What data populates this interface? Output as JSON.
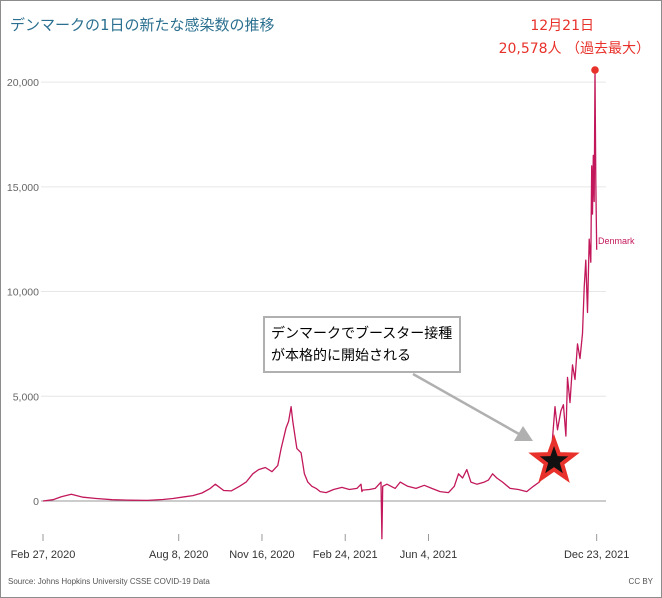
{
  "title": "デンマークの1日の新たな感染数の推移",
  "source": "Source: Johns Hopkins University CSSE COVID-19 Data",
  "license": "CC BY",
  "peak_annotation": {
    "date_label": "12月21日",
    "value_label": "20,578人 （過去最大）",
    "date": "2021-12-21",
    "value": 20578
  },
  "booster_annotation": {
    "line1": "デンマークでブースター接種",
    "line2": "が本格的に開始される",
    "marker": "star-icon"
  },
  "colors": {
    "series": "#c2185b",
    "peak": "#e8312a",
    "title": "#2a6f8f",
    "star_fill": "#111111",
    "star_stroke": "#e8312a",
    "arrow": "#b0b0b0"
  },
  "chart_data": {
    "type": "line",
    "title": "デンマークの1日の新たな感染数の推移",
    "xlabel": "",
    "ylabel": "",
    "x_range": [
      "2020-02-27",
      "2021-12-21"
    ],
    "ylim": [
      0,
      20578
    ],
    "yticks": [
      0,
      5000,
      10000,
      15000,
      20000
    ],
    "ytick_labels": [
      "0",
      "5,000",
      "10,000",
      "15,000",
      "20,000"
    ],
    "xtick_labels": [
      "Feb 27, 2020",
      "Aug 8, 2020",
      "Nov 16, 2020",
      "Feb 24, 2021",
      "Jun 4, 2021",
      "Dec 23, 2021"
    ],
    "xtick_dates": [
      "2020-02-27",
      "2020-08-08",
      "2020-11-16",
      "2021-02-24",
      "2021-06-04",
      "2021-12-23"
    ],
    "grid": "horizontal",
    "series": [
      {
        "name": "Denmark",
        "x": [
          "2020-02-27",
          "2020-03-10",
          "2020-03-20",
          "2020-04-01",
          "2020-04-15",
          "2020-05-01",
          "2020-05-20",
          "2020-06-10",
          "2020-07-01",
          "2020-07-20",
          "2020-08-01",
          "2020-08-15",
          "2020-08-25",
          "2020-09-05",
          "2020-09-15",
          "2020-09-21",
          "2020-10-01",
          "2020-10-10",
          "2020-10-20",
          "2020-10-28",
          "2020-11-05",
          "2020-11-12",
          "2020-11-20",
          "2020-11-28",
          "2020-12-05",
          "2020-12-09",
          "2020-12-12",
          "2020-12-15",
          "2020-12-18",
          "2020-12-21",
          "2020-12-23",
          "2020-12-26",
          "2020-12-28",
          "2021-01-02",
          "2021-01-06",
          "2021-01-10",
          "2021-01-15",
          "2021-01-20",
          "2021-01-25",
          "2021-02-01",
          "2021-02-10",
          "2021-02-20",
          "2021-03-01",
          "2021-03-10",
          "2021-03-15",
          "2021-03-16",
          "2021-03-17",
          "2021-03-25",
          "2021-04-01",
          "2021-04-08",
          "2021-04-09",
          "2021-04-10",
          "2021-04-15",
          "2021-04-25",
          "2021-05-01",
          "2021-05-10",
          "2021-05-20",
          "2021-05-30",
          "2021-06-08",
          "2021-06-18",
          "2021-06-28",
          "2021-07-05",
          "2021-07-10",
          "2021-07-15",
          "2021-07-20",
          "2021-07-25",
          "2021-08-01",
          "2021-08-10",
          "2021-08-15",
          "2021-08-20",
          "2021-08-25",
          "2021-09-01",
          "2021-09-10",
          "2021-09-20",
          "2021-09-30",
          "2021-10-08",
          "2021-10-15",
          "2021-10-20",
          "2021-10-25",
          "2021-10-30",
          "2021-11-03",
          "2021-11-06",
          "2021-11-10",
          "2021-11-13",
          "2021-11-16",
          "2021-11-18",
          "2021-11-21",
          "2021-11-24",
          "2021-11-27",
          "2021-11-30",
          "2021-12-03",
          "2021-12-06",
          "2021-12-08",
          "2021-12-10",
          "2021-12-12",
          "2021-12-14",
          "2021-12-16",
          "2021-12-17",
          "2021-12-18",
          "2021-12-19",
          "2021-12-20",
          "2021-12-21",
          "2021-12-22",
          "2021-12-23"
        ],
        "y": [
          2,
          60,
          200,
          320,
          180,
          120,
          60,
          40,
          30,
          70,
          120,
          200,
          260,
          380,
          600,
          800,
          500,
          480,
          700,
          900,
          1300,
          1500,
          1600,
          1400,
          1700,
          2500,
          3000,
          3500,
          3800,
          4500,
          3800,
          3000,
          2500,
          2300,
          1300,
          900,
          700,
          600,
          450,
          400,
          550,
          650,
          550,
          600,
          800,
          450,
          520,
          550,
          600,
          900,
          -1800,
          700,
          800,
          600,
          900,
          700,
          600,
          750,
          600,
          450,
          400,
          700,
          1300,
          1100,
          1500,
          900,
          800,
          900,
          1000,
          1300,
          1100,
          900,
          600,
          550,
          450,
          700,
          900,
          1200,
          1800,
          2500,
          4500,
          3400,
          4300,
          4600,
          3100,
          5900,
          4700,
          6500,
          5800,
          7500,
          6800,
          8000,
          10200,
          11500,
          9000,
          12500,
          11400,
          16000,
          13700,
          16500,
          14300,
          20578,
          15300,
          12000
        ]
      }
    ]
  }
}
